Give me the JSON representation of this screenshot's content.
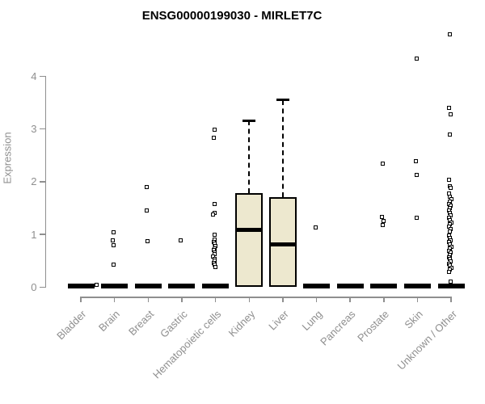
{
  "title": "ENSG00000199030 - MIRLET7C",
  "colors": {
    "background": "#ffffff",
    "axis": "#8f8f8f",
    "ink": "#000000",
    "box_fill": "#ede8cf"
  },
  "chart_data": {
    "type": "boxplot",
    "title": "ENSG00000199030 - MIRLET7C",
    "xlabel": "",
    "ylabel": "Expression",
    "ylim": [
      0,
      4.85
    ],
    "yticks": [
      0,
      1,
      2,
      3,
      4
    ],
    "grid": false,
    "legend": "none",
    "categories": [
      "Bladder",
      "Brain",
      "Breast",
      "Gastric",
      "Hematopoietic cells",
      "Kidney",
      "Liver",
      "Lung",
      "Pancreas",
      "Prostate",
      "Skin",
      "Unknown / Other"
    ],
    "groups": [
      {
        "label": "Bladder",
        "box": {
          "q1": 0,
          "median": 0,
          "q3": 0,
          "whisker_low": 0,
          "whisker_high": 0,
          "collapsed": true
        },
        "points": [
          {
            "v": 0.04,
            "dx": 21
          }
        ]
      },
      {
        "label": "Brain",
        "box": {
          "q1": 0,
          "median": 0,
          "q3": 0,
          "whisker_low": 0,
          "whisker_high": 0,
          "collapsed": true
        },
        "points": [
          1.04,
          0.88,
          0.8,
          0.43
        ]
      },
      {
        "label": "Breast",
        "box": {
          "q1": 0,
          "median": 0,
          "q3": 0,
          "whisker_low": 0,
          "whisker_high": 0,
          "collapsed": true
        },
        "points": [
          1.9,
          1.46,
          0.87
        ]
      },
      {
        "label": "Gastric",
        "box": {
          "q1": 0,
          "median": 0,
          "q3": 0,
          "whisker_low": 0,
          "whisker_high": 0,
          "collapsed": true
        },
        "points": [
          0.88
        ]
      },
      {
        "label": "Hematopoietic cells",
        "box": {
          "q1": 0,
          "median": 0,
          "q3": 0,
          "whisker_low": 0,
          "whisker_high": 0,
          "collapsed": true
        },
        "points": [
          2.99,
          2.83,
          1.57,
          1.41,
          1.37,
          0.99,
          0.9,
          0.86,
          0.82,
          0.78,
          0.74,
          0.7,
          0.66,
          0.62,
          0.58,
          0.54,
          0.5,
          0.46,
          0.42,
          0.38
        ]
      },
      {
        "label": "Kidney",
        "box": {
          "q1": 0,
          "median": 1.08,
          "q3": 1.79,
          "whisker_low": 0,
          "whisker_high": 3.16,
          "collapsed": false
        },
        "points": []
      },
      {
        "label": "Liver",
        "box": {
          "q1": 0,
          "median": 0.81,
          "q3": 1.71,
          "whisker_low": 0,
          "whisker_high": 3.55,
          "collapsed": false
        },
        "points": []
      },
      {
        "label": "Lung",
        "box": {
          "q1": 0,
          "median": 0,
          "q3": 0,
          "whisker_low": 0,
          "whisker_high": 0,
          "collapsed": true
        },
        "points": [
          1.13
        ]
      },
      {
        "label": "Pancreas",
        "box": {
          "q1": 0,
          "median": 0,
          "q3": 0,
          "whisker_low": 0,
          "whisker_high": 0,
          "collapsed": true
        },
        "points": []
      },
      {
        "label": "Prostate",
        "box": {
          "q1": 0,
          "median": 0,
          "q3": 0,
          "whisker_low": 0,
          "whisker_high": 0,
          "collapsed": true
        },
        "points": [
          2.35,
          1.33,
          1.26,
          1.18
        ]
      },
      {
        "label": "Skin",
        "box": {
          "q1": 0,
          "median": 0,
          "q3": 0,
          "whisker_low": 0,
          "whisker_high": 0,
          "collapsed": true
        },
        "points": [
          4.34,
          2.39,
          2.13,
          1.31
        ]
      },
      {
        "label": "Unknown / Other",
        "box": {
          "q1": 0,
          "median": 0,
          "q3": 0,
          "whisker_low": 0,
          "whisker_high": 0,
          "collapsed": true
        },
        "points": [
          4.8,
          3.4,
          3.27,
          2.9,
          2.03,
          1.92,
          1.88,
          1.77,
          1.72,
          1.67,
          1.62,
          1.58,
          1.54,
          1.5,
          1.46,
          1.41,
          1.36,
          1.31,
          1.27,
          1.23,
          1.19,
          1.15,
          1.1,
          1.05,
          0.98,
          0.93,
          0.89,
          0.85,
          0.81,
          0.77,
          0.73,
          0.69,
          0.65,
          0.61,
          0.57,
          0.53,
          0.49,
          0.45,
          0.41,
          0.37,
          0.33,
          0.29,
          0.11
        ]
      }
    ]
  }
}
